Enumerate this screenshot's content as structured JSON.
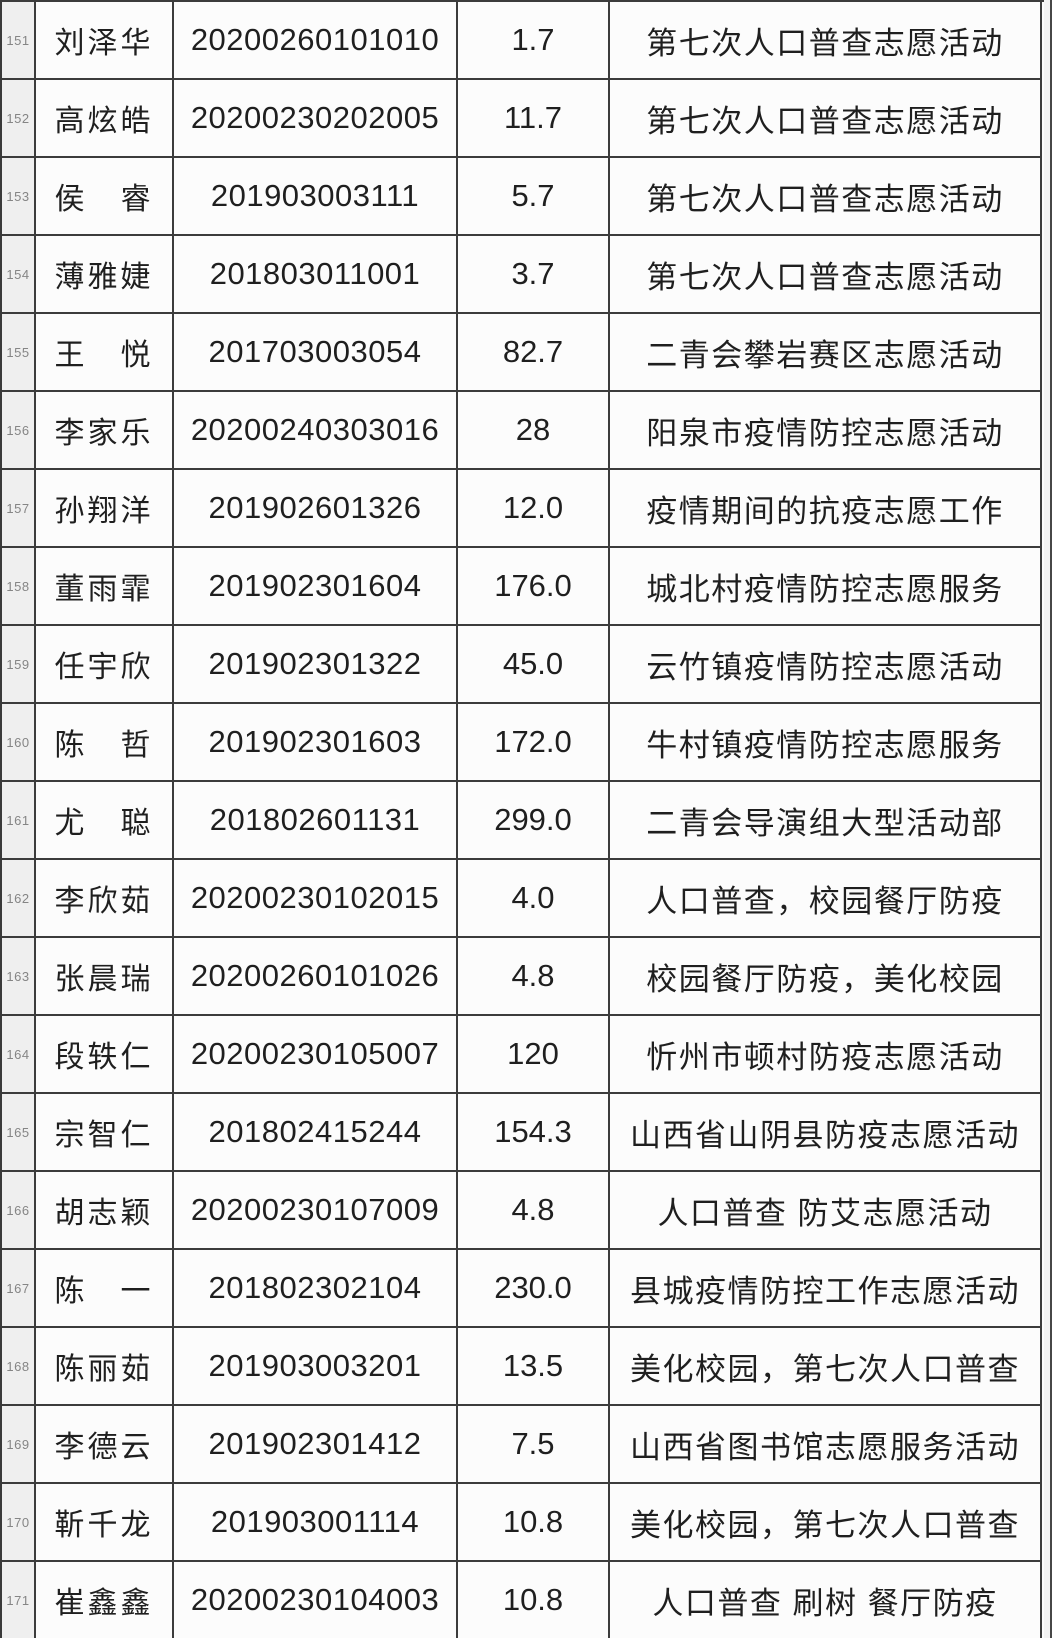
{
  "table": {
    "description_semantic": "volunteer-hours-spreadsheet-rows-151-171",
    "rows": [
      {
        "index": "151",
        "name": "刘泽华",
        "student_id": "20200260101010",
        "hours": "1.7",
        "activity": "第七次人口普查志愿活动"
      },
      {
        "index": "152",
        "name": "高炫皓",
        "student_id": "20200230202005",
        "hours": "11.7",
        "activity": "第七次人口普查志愿活动"
      },
      {
        "index": "153",
        "name": "侯　睿",
        "student_id": "201903003111",
        "hours": "5.7",
        "activity": "第七次人口普查志愿活动"
      },
      {
        "index": "154",
        "name": "薄雅婕",
        "student_id": "201803011001",
        "hours": "3.7",
        "activity": "第七次人口普查志愿活动"
      },
      {
        "index": "155",
        "name": "王　悦",
        "student_id": "201703003054",
        "hours": "82.7",
        "activity": "二青会攀岩赛区志愿活动"
      },
      {
        "index": "156",
        "name": "李家乐",
        "student_id": "20200240303016",
        "hours": "28",
        "activity": "阳泉市疫情防控志愿活动"
      },
      {
        "index": "157",
        "name": "孙翔洋",
        "student_id": "201902601326",
        "hours": "12.0",
        "activity": "疫情期间的抗疫志愿工作"
      },
      {
        "index": "158",
        "name": "董雨霏",
        "student_id": "201902301604",
        "hours": "176.0",
        "activity": "城北村疫情防控志愿服务"
      },
      {
        "index": "159",
        "name": "任宇欣",
        "student_id": "201902301322",
        "hours": "45.0",
        "activity": "云竹镇疫情防控志愿活动"
      },
      {
        "index": "160",
        "name": "陈　哲",
        "student_id": "201902301603",
        "hours": "172.0",
        "activity": "牛村镇疫情防控志愿服务"
      },
      {
        "index": "161",
        "name": "尤　聪",
        "student_id": "201802601131",
        "hours": "299.0",
        "activity": "二青会导演组大型活动部"
      },
      {
        "index": "162",
        "name": "李欣茹",
        "student_id": "20200230102015",
        "hours": "4.0",
        "activity": "人口普查，校园餐厅防疫"
      },
      {
        "index": "163",
        "name": "张晨瑞",
        "student_id": "20200260101026",
        "hours": "4.8",
        "activity": "校园餐厅防疫，美化校园"
      },
      {
        "index": "164",
        "name": "段轶仁",
        "student_id": "20200230105007",
        "hours": "120",
        "activity": "忻州市顿村防疫志愿活动"
      },
      {
        "index": "165",
        "name": "宗智仁",
        "student_id": "201802415244",
        "hours": "154.3",
        "activity": "山西省山阴县防疫志愿活动"
      },
      {
        "index": "166",
        "name": "胡志颖",
        "student_id": "20200230107009",
        "hours": "4.8",
        "activity": "人口普查 防艾志愿活动"
      },
      {
        "index": "167",
        "name": "陈　一",
        "student_id": "201802302104",
        "hours": "230.0",
        "activity": "县城疫情防控工作志愿活动"
      },
      {
        "index": "168",
        "name": "陈丽茹",
        "student_id": "201903003201",
        "hours": "13.5",
        "activity": "美化校园，第七次人口普查"
      },
      {
        "index": "169",
        "name": "李德云",
        "student_id": "201902301412",
        "hours": "7.5",
        "activity": "山西省图书馆志愿服务活动"
      },
      {
        "index": "170",
        "name": "靳千龙",
        "student_id": "201903001114",
        "hours": "10.8",
        "activity": "美化校园，第七次人口普查"
      },
      {
        "index": "171",
        "name": "崔鑫鑫",
        "student_id": "20200230104003",
        "hours": "10.8",
        "activity": "人口普查 刷树 餐厅防疫"
      }
    ]
  },
  "colors": {
    "grid_border": "#3c3c3c",
    "row_header_bg": "#efefef",
    "row_header_text": "#858585",
    "cell_bg": "#fcfcfc",
    "cell_text": "#1f1f1f"
  }
}
